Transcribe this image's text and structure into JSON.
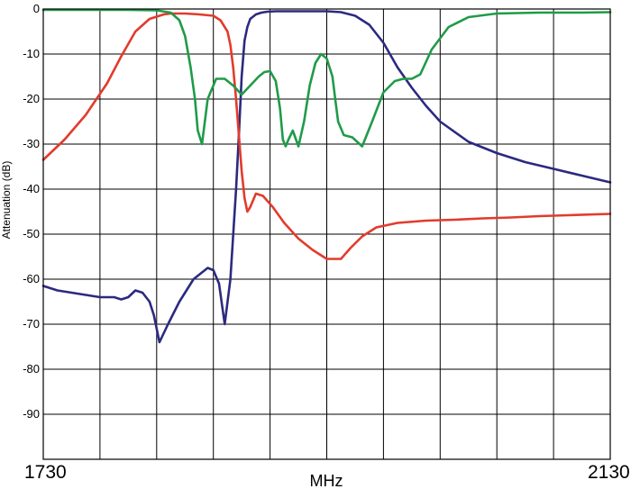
{
  "chart_data": {
    "type": "line",
    "title": "",
    "xlabel": "MHz",
    "ylabel": "Attenuation (dB)",
    "xlim": [
      1730,
      2130
    ],
    "ylim": [
      -100,
      0
    ],
    "x_tick_labels": [
      "1730",
      "2130"
    ],
    "y_tick_labels": [
      "0",
      "-10",
      "-20",
      "-30",
      "-40",
      "-50",
      "-60",
      "-70",
      "-80",
      "-90"
    ],
    "grid": true,
    "legend": "none",
    "series": [
      {
        "color": "#2b2a80",
        "x": [
          1730,
          1740,
          1750,
          1760,
          1770,
          1780,
          1785,
          1790,
          1795,
          1800,
          1805,
          1808,
          1812,
          1818,
          1826,
          1836,
          1846,
          1850,
          1854,
          1858,
          1862,
          1866,
          1868,
          1870,
          1872,
          1874,
          1876,
          1880,
          1884,
          1888,
          1894,
          1900,
          1910,
          1920,
          1930,
          1940,
          1950,
          1960,
          1970,
          1980,
          1990,
          2000,
          2010,
          2030,
          2050,
          2070,
          2090,
          2110,
          2130
        ],
        "y": [
          -61.5,
          -62.5,
          -63,
          -63.5,
          -64,
          -64,
          -64.5,
          -64,
          -62.5,
          -63,
          -65,
          -68,
          -74,
          -70,
          -65,
          -60,
          -57.5,
          -58,
          -61,
          -70,
          -60,
          -40,
          -28,
          -15,
          -7,
          -4,
          -2.2,
          -1.2,
          -0.8,
          -0.6,
          -0.5,
          -0.5,
          -0.5,
          -0.5,
          -0.5,
          -0.7,
          -1.5,
          -3.5,
          -7.5,
          -13,
          -17.5,
          -21.5,
          -25,
          -29.5,
          -32,
          -34,
          -35.5,
          -37,
          -38.5
        ]
      },
      {
        "color": "#e23b2c",
        "x": [
          1730,
          1745,
          1760,
          1775,
          1785,
          1795,
          1805,
          1815,
          1820,
          1830,
          1840,
          1850,
          1855,
          1860,
          1862,
          1864,
          1866,
          1868,
          1870,
          1872,
          1874,
          1876,
          1880,
          1885,
          1892,
          1900,
          1910,
          1920,
          1930,
          1940,
          1947,
          1955,
          1965,
          1980,
          2000,
          2020,
          2040,
          2060,
          2080,
          2100,
          2130
        ],
        "y": [
          -33.5,
          -29,
          -23.5,
          -16.5,
          -10.5,
          -5,
          -2.2,
          -1.2,
          -1,
          -1,
          -1.2,
          -1.5,
          -2.5,
          -5,
          -8,
          -13,
          -20,
          -28,
          -36,
          -42,
          -45,
          -44,
          -41,
          -41.5,
          -44,
          -47.5,
          -51,
          -53.5,
          -55.5,
          -55.5,
          -53,
          -50.5,
          -48.5,
          -47.5,
          -47,
          -46.8,
          -46.5,
          -46.3,
          -46,
          -45.8,
          -45.5
        ]
      },
      {
        "color": "#1f9b48",
        "x": [
          1730,
          1760,
          1790,
          1810,
          1820,
          1826,
          1830,
          1834,
          1837,
          1839,
          1842,
          1846,
          1852,
          1858,
          1864,
          1870,
          1876,
          1882,
          1886,
          1890,
          1894,
          1897,
          1899,
          1901,
          1903,
          1906,
          1910,
          1914,
          1918,
          1922,
          1926,
          1930,
          1934,
          1936,
          1938,
          1942,
          1948,
          1955,
          1962,
          1970,
          1978,
          1984,
          1990,
          1996,
          2004,
          2016,
          2030,
          2050,
          2080,
          2110,
          2130
        ],
        "y": [
          -0.2,
          -0.2,
          -0.2,
          -0.3,
          -0.8,
          -2.5,
          -6,
          -13,
          -20,
          -27,
          -30,
          -20,
          -15.5,
          -15.5,
          -17,
          -19,
          -17,
          -15,
          -14,
          -13.8,
          -16,
          -22,
          -29,
          -30.5,
          -29,
          -27,
          -30.5,
          -25,
          -17,
          -12,
          -10,
          -11,
          -15,
          -20,
          -25,
          -28,
          -28.5,
          -30.5,
          -25,
          -18.5,
          -16,
          -15.5,
          -15.5,
          -14.5,
          -9,
          -4,
          -1.8,
          -1,
          -0.8,
          -0.8,
          -0.7
        ]
      }
    ]
  }
}
